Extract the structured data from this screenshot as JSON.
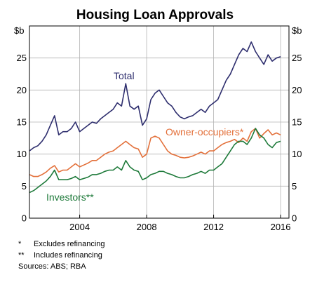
{
  "chart_data": {
    "type": "line",
    "title": "Housing Loan Approvals",
    "unit_left": "$b",
    "unit_right": "$b",
    "x_range": [
      2001.0,
      2016.5
    ],
    "x_ticks": [
      2004,
      2008,
      2012,
      2016
    ],
    "ylim": [
      0,
      30
    ],
    "y_ticks": [
      0,
      5,
      10,
      15,
      20,
      25
    ],
    "grid": true,
    "series": [
      {
        "name": "Total",
        "color": "#2e2e6e",
        "x": [
          2001.0,
          2001.25,
          2001.5,
          2001.75,
          2002.0,
          2002.25,
          2002.5,
          2002.75,
          2003.0,
          2003.25,
          2003.5,
          2003.75,
          2004.0,
          2004.25,
          2004.5,
          2004.75,
          2005.0,
          2005.25,
          2005.5,
          2005.75,
          2006.0,
          2006.25,
          2006.5,
          2006.75,
          2007.0,
          2007.25,
          2007.5,
          2007.75,
          2008.0,
          2008.25,
          2008.5,
          2008.75,
          2009.0,
          2009.25,
          2009.5,
          2009.75,
          2010.0,
          2010.25,
          2010.5,
          2010.75,
          2011.0,
          2011.25,
          2011.5,
          2011.75,
          2012.0,
          2012.25,
          2012.5,
          2012.75,
          2013.0,
          2013.25,
          2013.5,
          2013.75,
          2014.0,
          2014.25,
          2014.5,
          2014.75,
          2015.0,
          2015.25,
          2015.5,
          2015.75,
          2016.0
        ],
        "values": [
          10.5,
          11.0,
          11.3,
          12.0,
          13.0,
          14.5,
          16.0,
          13.0,
          13.5,
          13.5,
          14.0,
          15.0,
          13.5,
          14.0,
          14.5,
          15.0,
          14.8,
          15.5,
          16.0,
          16.5,
          17.0,
          18.0,
          17.5,
          21.0,
          17.5,
          17.0,
          17.5,
          14.5,
          15.5,
          18.5,
          19.5,
          20.0,
          19.0,
          18.0,
          17.5,
          16.5,
          15.8,
          15.5,
          15.8,
          16.0,
          16.5,
          17.0,
          16.5,
          17.5,
          18.0,
          18.5,
          20.0,
          21.5,
          22.5,
          24.0,
          25.5,
          26.5,
          26.0,
          27.5,
          26.0,
          25.0,
          24.0,
          25.5,
          24.5,
          25.0,
          25.2
        ]
      },
      {
        "name": "Owner-occupiers*",
        "color": "#e3703a",
        "x": [
          2001.0,
          2001.25,
          2001.5,
          2001.75,
          2002.0,
          2002.25,
          2002.5,
          2002.75,
          2003.0,
          2003.25,
          2003.5,
          2003.75,
          2004.0,
          2004.25,
          2004.5,
          2004.75,
          2005.0,
          2005.25,
          2005.5,
          2005.75,
          2006.0,
          2006.25,
          2006.5,
          2006.75,
          2007.0,
          2007.25,
          2007.5,
          2007.75,
          2008.0,
          2008.25,
          2008.5,
          2008.75,
          2009.0,
          2009.25,
          2009.5,
          2009.75,
          2010.0,
          2010.25,
          2010.5,
          2010.75,
          2011.0,
          2011.25,
          2011.5,
          2011.75,
          2012.0,
          2012.25,
          2012.5,
          2012.75,
          2013.0,
          2013.25,
          2013.5,
          2013.75,
          2014.0,
          2014.25,
          2014.5,
          2014.75,
          2015.0,
          2015.25,
          2015.5,
          2015.75,
          2016.0
        ],
        "values": [
          6.8,
          6.5,
          6.5,
          6.8,
          7.2,
          7.8,
          8.2,
          7.2,
          7.5,
          7.5,
          8.0,
          8.5,
          8.0,
          8.3,
          8.6,
          9.0,
          9.0,
          9.5,
          10.0,
          10.3,
          10.5,
          11.0,
          11.5,
          12.0,
          11.5,
          11.0,
          10.8,
          9.5,
          10.0,
          12.5,
          12.8,
          12.5,
          11.5,
          10.5,
          10.0,
          9.8,
          9.5,
          9.4,
          9.5,
          9.7,
          10.0,
          10.3,
          10.0,
          10.5,
          10.5,
          11.0,
          11.5,
          11.8,
          12.0,
          12.3,
          11.8,
          12.5,
          12.0,
          13.5,
          14.0,
          12.5,
          13.2,
          13.8,
          13.0,
          13.3,
          13.0
        ]
      },
      {
        "name": "Investors**",
        "color": "#1e7a3a",
        "x": [
          2001.0,
          2001.25,
          2001.5,
          2001.75,
          2002.0,
          2002.25,
          2002.5,
          2002.75,
          2003.0,
          2003.25,
          2003.5,
          2003.75,
          2004.0,
          2004.25,
          2004.5,
          2004.75,
          2005.0,
          2005.25,
          2005.5,
          2005.75,
          2006.0,
          2006.25,
          2006.5,
          2006.75,
          2007.0,
          2007.25,
          2007.5,
          2007.75,
          2008.0,
          2008.25,
          2008.5,
          2008.75,
          2009.0,
          2009.25,
          2009.5,
          2009.75,
          2010.0,
          2010.25,
          2010.5,
          2010.75,
          2011.0,
          2011.25,
          2011.5,
          2011.75,
          2012.0,
          2012.25,
          2012.5,
          2012.75,
          2013.0,
          2013.25,
          2013.5,
          2013.75,
          2014.0,
          2014.25,
          2014.5,
          2014.75,
          2015.0,
          2015.25,
          2015.5,
          2015.75,
          2016.0
        ],
        "values": [
          4.0,
          4.3,
          4.8,
          5.3,
          5.8,
          6.5,
          7.5,
          6.0,
          6.0,
          6.0,
          6.2,
          6.5,
          6.0,
          6.2,
          6.4,
          6.8,
          6.8,
          7.0,
          7.3,
          7.5,
          7.5,
          8.0,
          7.5,
          9.0,
          8.0,
          7.5,
          7.3,
          6.0,
          6.3,
          6.8,
          7.0,
          7.3,
          7.3,
          7.0,
          6.8,
          6.5,
          6.3,
          6.3,
          6.5,
          6.8,
          7.0,
          7.3,
          7.0,
          7.5,
          7.5,
          8.0,
          8.5,
          9.5,
          10.5,
          11.5,
          12.0,
          12.0,
          11.5,
          12.5,
          14.0,
          13.0,
          12.5,
          11.5,
          11.0,
          11.8,
          12.0
        ]
      }
    ],
    "footnotes": [
      {
        "mark": "*",
        "text": "Excludes refinancing"
      },
      {
        "mark": "**",
        "text": "Includes refinancing"
      }
    ],
    "source": "Sources:  ABS; RBA"
  }
}
